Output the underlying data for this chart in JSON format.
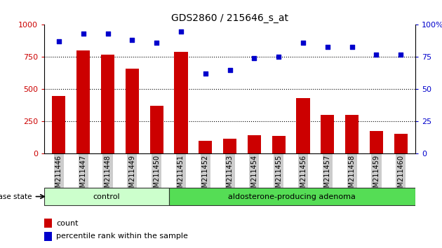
{
  "title": "GDS2860 / 215646_s_at",
  "categories": [
    "GSM211446",
    "GSM211447",
    "GSM211448",
    "GSM211449",
    "GSM211450",
    "GSM211451",
    "GSM211452",
    "GSM211453",
    "GSM211454",
    "GSM211455",
    "GSM211456",
    "GSM211457",
    "GSM211458",
    "GSM211459",
    "GSM211460"
  ],
  "counts": [
    450,
    800,
    770,
    660,
    370,
    790,
    100,
    115,
    145,
    140,
    430,
    300,
    300,
    175,
    155
  ],
  "percentiles": [
    87,
    93,
    93,
    88,
    86,
    95,
    62,
    65,
    74,
    75,
    86,
    83,
    83,
    77,
    77
  ],
  "bar_color": "#cc0000",
  "dot_color": "#0000cc",
  "ylim_left": [
    0,
    1000
  ],
  "ylim_right": [
    0,
    100
  ],
  "yticks_left": [
    0,
    250,
    500,
    750,
    1000
  ],
  "yticks_right": [
    0,
    25,
    50,
    75,
    100
  ],
  "grid_lines": [
    250,
    500,
    750
  ],
  "control_count": 5,
  "control_label": "control",
  "adenoma_label": "aldosterone-producing adenoma",
  "disease_state_label": "disease state",
  "legend_count": "count",
  "legend_percentile": "percentile rank within the sample",
  "control_color": "#ccffcc",
  "adenoma_color": "#55dd55",
  "tick_bg_color": "#cccccc",
  "fig_width": 6.3,
  "fig_height": 3.54,
  "dpi": 100
}
